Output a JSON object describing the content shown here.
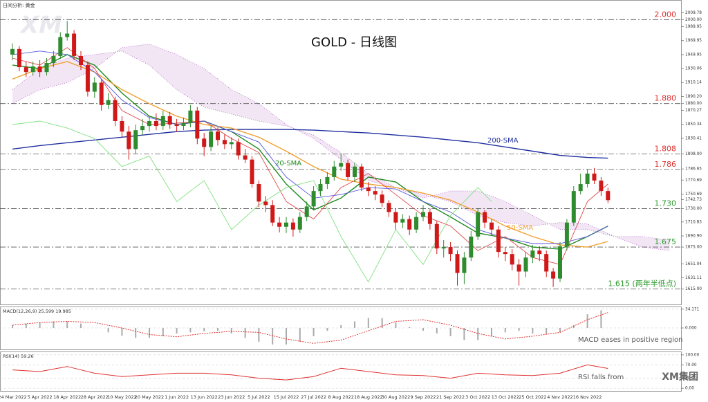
{
  "chart_data": [
    {
      "type": "candlestick",
      "title": "GOLD - 日线图",
      "subtitle": "日间分析: 黄金",
      "watermark": "XM",
      "categories": [
        "24 Mar 2022",
        null,
        null,
        null,
        "5 Apr 2022",
        null,
        null,
        null,
        "18 Apr 2022",
        null,
        null,
        null,
        "28 Apr 2022",
        null,
        null,
        null,
        "10 May 2022",
        null,
        null,
        null,
        "20 May 2022",
        null,
        null,
        null,
        "1 Jun 2022",
        null,
        null,
        null,
        "13 Jun 2022",
        null,
        null,
        null,
        "23 Jun 2022",
        null,
        null,
        null,
        "5 Jul 2022",
        null,
        null,
        null,
        "15 Jul 2022",
        null,
        null,
        null,
        "27 Jul 2022",
        null,
        null,
        null,
        "8 Aug 2022",
        null,
        null,
        null,
        "18 Aug 2022",
        null,
        null,
        null,
        "30 Aug 2022",
        null,
        null,
        null,
        "9 Sep 2022",
        null,
        null,
        null,
        "21 Sep 2022",
        null,
        null,
        null,
        "3 Oct 2022",
        null,
        null,
        null,
        "13 Oct 2022",
        null,
        null,
        null,
        "25 Oct 2022",
        null,
        null,
        null,
        "4 Nov 2022",
        null,
        null,
        null,
        "16 Nov 2022",
        null,
        null,
        null
      ],
      "open": [
        1950,
        1958,
        1932,
        1925,
        1933,
        1925,
        1938,
        1948,
        1975,
        1980,
        1948,
        1935,
        1897,
        1910,
        1878,
        1885,
        1855,
        1840,
        1815,
        1842,
        1848,
        1855,
        1848,
        1862,
        1850,
        1848,
        1852,
        1870,
        1830,
        1818,
        1840,
        1828,
        1822,
        1825,
        1806,
        1800,
        1765,
        1740,
        1735,
        1710,
        1704,
        1710,
        1700,
        1718,
        1733,
        1755,
        1765,
        1775,
        1790,
        1795,
        1775,
        1790,
        1760,
        1755,
        1750,
        1738,
        1725,
        1710,
        1715,
        1700,
        1718,
        1725,
        1708,
        1673,
        1675,
        1665,
        1638,
        1660,
        1690,
        1725,
        1710,
        1700,
        1668,
        1665,
        1650,
        1640,
        1660,
        1670,
        1665,
        1640,
        1630,
        1676,
        1710,
        1755,
        1765,
        1780,
        1770,
        1755
      ],
      "high": [
        1966,
        1962,
        1940,
        1940,
        1942,
        1945,
        1955,
        1982,
        1998,
        1985,
        1955,
        1940,
        1918,
        1915,
        1895,
        1890,
        1862,
        1848,
        1850,
        1858,
        1862,
        1866,
        1870,
        1868,
        1858,
        1860,
        1878,
        1875,
        1838,
        1848,
        1846,
        1836,
        1832,
        1830,
        1815,
        1805,
        1770,
        1748,
        1742,
        1718,
        1718,
        1716,
        1725,
        1740,
        1762,
        1772,
        1782,
        1798,
        1808,
        1800,
        1796,
        1794,
        1768,
        1762,
        1756,
        1742,
        1730,
        1722,
        1720,
        1725,
        1735,
        1730,
        1712,
        1685,
        1682,
        1670,
        1668,
        1698,
        1730,
        1728,
        1715,
        1705,
        1675,
        1672,
        1658,
        1668,
        1678,
        1676,
        1670,
        1645,
        1682,
        1715,
        1762,
        1780,
        1786,
        1788,
        1775,
        1760
      ],
      "low": [
        1942,
        1926,
        1918,
        1920,
        1918,
        1920,
        1932,
        1944,
        1970,
        1942,
        1928,
        1890,
        1888,
        1870,
        1872,
        1848,
        1832,
        1800,
        1808,
        1835,
        1840,
        1842,
        1842,
        1844,
        1840,
        1842,
        1846,
        1822,
        1805,
        1812,
        1820,
        1815,
        1815,
        1800,
        1795,
        1760,
        1732,
        1725,
        1705,
        1696,
        1695,
        1690,
        1695,
        1712,
        1728,
        1748,
        1758,
        1770,
        1784,
        1770,
        1768,
        1755,
        1748,
        1742,
        1732,
        1718,
        1700,
        1702,
        1692,
        1695,
        1712,
        1700,
        1665,
        1660,
        1655,
        1620,
        1622,
        1655,
        1685,
        1702,
        1692,
        1660,
        1655,
        1642,
        1620,
        1632,
        1652,
        1655,
        1632,
        1618,
        1625,
        1670,
        1705,
        1750,
        1760,
        1765,
        1748,
        1738
      ],
      "close": [
        1958,
        1932,
        1925,
        1933,
        1925,
        1938,
        1948,
        1975,
        1980,
        1948,
        1935,
        1897,
        1910,
        1878,
        1885,
        1855,
        1840,
        1815,
        1842,
        1848,
        1855,
        1848,
        1862,
        1850,
        1848,
        1852,
        1870,
        1830,
        1818,
        1840,
        1828,
        1822,
        1825,
        1806,
        1800,
        1765,
        1740,
        1735,
        1710,
        1704,
        1710,
        1700,
        1718,
        1733,
        1755,
        1765,
        1775,
        1790,
        1795,
        1775,
        1790,
        1760,
        1755,
        1750,
        1738,
        1725,
        1710,
        1715,
        1700,
        1718,
        1725,
        1708,
        1673,
        1675,
        1665,
        1638,
        1660,
        1690,
        1725,
        1710,
        1700,
        1668,
        1665,
        1650,
        1640,
        1660,
        1670,
        1665,
        1640,
        1630,
        1676,
        1710,
        1755,
        1765,
        1780,
        1770,
        1755,
        1742
      ],
      "up_color": "#2e8b2e",
      "down_color": "#d01818",
      "ylim": [
        1593,
        2028
      ],
      "yticks": [
        2009.78,
        {
          "value": 2000,
          "label": "2000.00"
        },
        1989.95,
        1969.95,
        1949.95,
        1930.06,
        1910.14,
        {
          "value": 1890.2,
          "label": "1890.20"
        },
        {
          "value": 1880,
          "label": "1880.00"
        },
        1870.27,
        1850.34,
        1830.41,
        {
          "value": 1808,
          "label": "1808.00"
        },
        1786.65,
        1770.69,
        1750.69,
        1742.73,
        {
          "value": 1730,
          "label": "1730.00"
        },
        1710.83,
        {
          "value": 1690.9,
          "label": "1690.90"
        },
        {
          "value": 1675,
          "label": "1675.00"
        },
        1651.04,
        1631.11,
        {
          "value": 1615,
          "label": "1615.00"
        }
      ],
      "levels": [
        {
          "value": 2000,
          "label": "2.000",
          "color": "#e03030"
        },
        {
          "value": 1880,
          "label": "1.880",
          "color": "#e03030"
        },
        {
          "value": 1808,
          "label": "1.808",
          "color": "#e03030"
        },
        {
          "value": 1786,
          "label": "1.786",
          "color": "#e03030"
        },
        {
          "value": 1730,
          "label": "1.730",
          "color": "#2e9a2e"
        },
        {
          "value": 1675,
          "label": "1.675",
          "color": "#2e9a2e"
        },
        {
          "value": 1615,
          "label": "1.615 (两年半低点)",
          "color": "#2e9a2e"
        }
      ],
      "cloud": {
        "color": "#9a3ab0",
        "x": [
          0,
          4,
          8,
          12,
          16,
          20,
          24,
          28,
          32,
          36,
          40,
          44,
          48,
          52,
          56,
          60,
          64,
          68,
          72,
          76,
          80,
          84,
          88,
          92,
          96
        ],
        "span_a": [
          1900,
          1930,
          1945,
          1950,
          1955,
          1935,
          1900,
          1875,
          1865,
          1855,
          1848,
          1835,
          1810,
          1780,
          1760,
          1745,
          1755,
          1755,
          1740,
          1720,
          1700,
          1700,
          1690,
          1690,
          1685
        ],
        "span_b": [
          1880,
          1900,
          1910,
          1930,
          1960,
          1965,
          1950,
          1930,
          1900,
          1880,
          1850,
          1830,
          1800,
          1770,
          1760,
          1750,
          1740,
          1720,
          1710,
          1705,
          1710,
          1708,
          1690,
          1675,
          1670
        ]
      },
      "series": [
        {
          "name": "200-SMA",
          "color": "#1f2f9f",
          "x": [
            0,
            4,
            8,
            12,
            16,
            20,
            24,
            28,
            32,
            36,
            40,
            44,
            48,
            52,
            56,
            60,
            64,
            68,
            72,
            76,
            80,
            84,
            87
          ],
          "values": [
            1815,
            1820,
            1824,
            1828,
            1832,
            1836,
            1840,
            1842,
            1843,
            1843,
            1843,
            1842,
            1840,
            1838,
            1835,
            1832,
            1828,
            1824,
            1818,
            1812,
            1806,
            1803,
            1802
          ]
        },
        {
          "name": "20-SMA",
          "color": "#1e8a1e",
          "x": [
            0,
            4,
            8,
            12,
            16,
            20,
            24,
            28,
            32,
            36,
            40,
            44,
            48,
            52,
            56,
            60,
            64,
            68,
            72,
            76,
            80,
            84,
            87
          ],
          "values": [
            1935,
            1930,
            1950,
            1935,
            1895,
            1862,
            1850,
            1855,
            1840,
            1815,
            1765,
            1728,
            1745,
            1775,
            1768,
            1740,
            1718,
            1695,
            1688,
            1675,
            1672,
            1690,
            1705
          ]
        },
        {
          "name": "50-SMA",
          "color": "#f0a030",
          "x": [
            0,
            4,
            8,
            12,
            16,
            20,
            24,
            28,
            32,
            36,
            40,
            44,
            48,
            52,
            56,
            60,
            64,
            68,
            72,
            76,
            80,
            84,
            87
          ],
          "values": [
            1915,
            1930,
            1940,
            1925,
            1900,
            1880,
            1862,
            1850,
            1845,
            1832,
            1812,
            1790,
            1772,
            1765,
            1760,
            1752,
            1742,
            1725,
            1705,
            1690,
            1678,
            1675,
            1683
          ]
        },
        {
          "color": "#e04848",
          "x": [
            0,
            4,
            8,
            12,
            16,
            20,
            24,
            28,
            32,
            36,
            40,
            44,
            48,
            52,
            56,
            60,
            64,
            68,
            72,
            76,
            80,
            84,
            87
          ],
          "values": [
            1945,
            1935,
            1960,
            1930,
            1870,
            1850,
            1852,
            1855,
            1830,
            1810,
            1740,
            1715,
            1760,
            1780,
            1750,
            1720,
            1705,
            1670,
            1690,
            1660,
            1650,
            1740,
            1765
          ]
        },
        {
          "color": "#5858e0",
          "x": [
            0,
            4,
            8,
            12,
            16,
            20,
            24,
            28,
            32,
            36,
            40,
            44,
            48,
            52,
            56,
            60,
            64,
            68,
            72,
            76,
            80,
            84,
            87
          ],
          "values": [
            1950,
            1955,
            1950,
            1925,
            1885,
            1860,
            1850,
            1855,
            1840,
            1825,
            1775,
            1745,
            1750,
            1760,
            1758,
            1740,
            1725,
            1700,
            1688,
            1680,
            1680,
            1690,
            1705
          ]
        },
        {
          "color": "#80e080",
          "x": [
            0,
            4,
            8,
            12,
            16,
            20,
            24,
            28,
            32,
            36,
            40,
            44,
            48,
            52,
            56,
            60,
            64,
            68,
            70
          ],
          "values": [
            1850,
            1855,
            1845,
            1830,
            1790,
            1805,
            1740,
            1770,
            1700,
            1735,
            1760,
            1770,
            1690,
            1625,
            1700,
            1650,
            1720,
            1760,
            1740
          ]
        }
      ]
    },
    {
      "type": "macd",
      "title": "MACD(12,26,9) 25.599 19.985",
      "annotation": "MACD eases in positive region",
      "ylim": [
        -39,
        39
      ],
      "yticks": [
        34.171,
        {
          "value": 0,
          "label": "0.000"
        }
      ],
      "histogram": {
        "color": "#aaaaaa",
        "x": [
          0,
          2,
          4,
          6,
          8,
          10,
          12,
          14,
          16,
          18,
          20,
          22,
          24,
          26,
          28,
          30,
          32,
          34,
          36,
          38,
          40,
          42,
          44,
          46,
          48,
          50,
          52,
          54,
          56,
          58,
          60,
          62,
          64,
          66,
          68,
          70,
          72,
          74,
          76,
          78,
          80,
          82,
          84,
          86
        ],
        "values": [
          5,
          8,
          10,
          12,
          12,
          8,
          0,
          -8,
          -14,
          -18,
          -18,
          -15,
          -10,
          -8,
          -6,
          -5,
          -10,
          -18,
          -25,
          -30,
          -30,
          -25,
          -15,
          -5,
          5,
          12,
          18,
          18,
          10,
          2,
          -5,
          -10,
          -15,
          -22,
          -22,
          -15,
          -8,
          -5,
          -10,
          -12,
          -8,
          5,
          25,
          32
        ]
      },
      "series": [
        {
          "color": "#e03030",
          "x": [
            0,
            4,
            8,
            12,
            16,
            20,
            24,
            28,
            32,
            36,
            40,
            44,
            48,
            52,
            56,
            60,
            64,
            68,
            72,
            76,
            80,
            84,
            87
          ],
          "values": [
            5,
            10,
            12,
            10,
            0,
            -12,
            -16,
            -10,
            -6,
            -8,
            -20,
            -28,
            -22,
            -5,
            12,
            15,
            5,
            -10,
            -20,
            -15,
            -8,
            15,
            28
          ]
        }
      ]
    },
    {
      "type": "rsi",
      "title": "RSI(14) 59.26",
      "annotation": "RSI falls from",
      "watermark": "XM集团",
      "ylim": [
        -8,
        110
      ],
      "yticks": [
        {
          "value": 100,
          "label": "100.00"
        },
        {
          "value": 70,
          "label": "70.00"
        },
        {
          "value": 30,
          "label": "30.00"
        },
        {
          "value": 0,
          "label": "0.00"
        }
      ],
      "series": [
        {
          "color": "#e03030",
          "x": [
            0,
            4,
            8,
            12,
            16,
            20,
            24,
            28,
            32,
            36,
            40,
            44,
            48,
            52,
            56,
            60,
            64,
            68,
            72,
            76,
            80,
            84,
            87
          ],
          "values": [
            55,
            50,
            65,
            45,
            35,
            40,
            45,
            45,
            40,
            30,
            25,
            35,
            60,
            50,
            40,
            38,
            30,
            45,
            40,
            38,
            45,
            70,
            59.26
          ]
        }
      ]
    }
  ]
}
